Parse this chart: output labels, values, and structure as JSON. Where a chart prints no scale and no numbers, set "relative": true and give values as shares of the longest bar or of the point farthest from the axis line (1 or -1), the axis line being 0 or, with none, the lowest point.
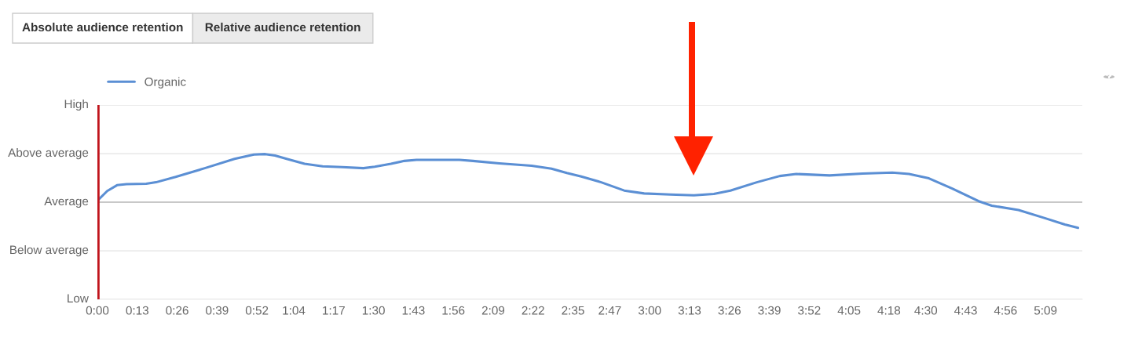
{
  "chart_data": {
    "type": "line",
    "annotations": [
      "Absolute audience retention",
      "Relative audience retention"
    ],
    "series": [
      {
        "name": "Organic",
        "color": "#5b8fd4",
        "x": [
          0,
          3.2,
          6.4,
          9.5,
          15.9,
          19.1,
          25.5,
          35,
          44.7,
          51,
          54.7,
          57.9,
          61.7,
          67.5,
          73.4,
          79.8,
          86.7,
          90.4,
          95.7,
          100,
          104,
          118,
          122.4,
          131,
          141.5,
          148,
          153,
          157.7,
          164.2,
          171.7,
          178.2,
          186.8,
          194.4,
          200.9,
          206.3,
          214.9,
          222.4,
          227.8,
          238.6,
          249.4,
          259.1,
          264.5,
          271,
          278.6,
          287.2,
          291.5,
          300.2,
          308.8,
          315.3,
          319.6
        ],
        "values": [
          0.679,
          0.746,
          0.786,
          0.793,
          0.796,
          0.806,
          0.843,
          0.903,
          0.967,
          0.997,
          1,
          0.99,
          0.967,
          0.933,
          0.916,
          0.91,
          0.903,
          0.913,
          0.933,
          0.953,
          0.96,
          0.96,
          0.953,
          0.936,
          0.92,
          0.9,
          0.87,
          0.846,
          0.806,
          0.749,
          0.729,
          0.722,
          0.716,
          0.726,
          0.749,
          0.806,
          0.849,
          0.863,
          0.853,
          0.866,
          0.873,
          0.863,
          0.833,
          0.763,
          0.676,
          0.645,
          0.615,
          0.559,
          0.515,
          0.492
        ]
      }
    ],
    "xlim": [
      0,
      321
    ],
    "xticks": [
      {
        "value": 0,
        "label": "0:00"
      },
      {
        "value": 13,
        "label": "0:13"
      },
      {
        "value": 26,
        "label": "0:26"
      },
      {
        "value": 39,
        "label": "0:39"
      },
      {
        "value": 52,
        "label": "0:52"
      },
      {
        "value": 64,
        "label": "1:04"
      },
      {
        "value": 77,
        "label": "1:17"
      },
      {
        "value": 90,
        "label": "1:30"
      },
      {
        "value": 103,
        "label": "1:43"
      },
      {
        "value": 116,
        "label": "1:56"
      },
      {
        "value": 129,
        "label": "2:09"
      },
      {
        "value": 142,
        "label": "2:22"
      },
      {
        "value": 155,
        "label": "2:35"
      },
      {
        "value": 167,
        "label": "2:47"
      },
      {
        "value": 180,
        "label": "3:00"
      },
      {
        "value": 193,
        "label": "3:13"
      },
      {
        "value": 206,
        "label": "3:26"
      },
      {
        "value": 219,
        "label": "3:39"
      },
      {
        "value": 232,
        "label": "3:52"
      },
      {
        "value": 245,
        "label": "4:05"
      },
      {
        "value": 258,
        "label": "4:18"
      },
      {
        "value": 270,
        "label": "4:30"
      },
      {
        "value": 283,
        "label": "4:43"
      },
      {
        "value": 296,
        "label": "4:56"
      },
      {
        "value": 309,
        "label": "5:09"
      }
    ],
    "relative": true,
    "ref_lines": [
      {
        "axis": "y",
        "value": 0,
        "label": "Low",
        "color": "#ebebeb"
      },
      {
        "axis": "y",
        "value": 0.334,
        "label": "Below average",
        "color": "#ebebeb"
      },
      {
        "axis": "y",
        "value": 0.669,
        "label": "Average",
        "color": "#c8c8c8"
      },
      {
        "axis": "y",
        "value": 1.003,
        "label": "Above average",
        "color": "#ebebeb"
      },
      {
        "axis": "y",
        "value": 1.338,
        "label": "High",
        "color": "#ebebeb"
      },
      {
        "axis": "x",
        "value": 0,
        "color": "#c0141c"
      }
    ],
    "legend": "top left",
    "marker": "none",
    "line_style": "solid"
  }
}
